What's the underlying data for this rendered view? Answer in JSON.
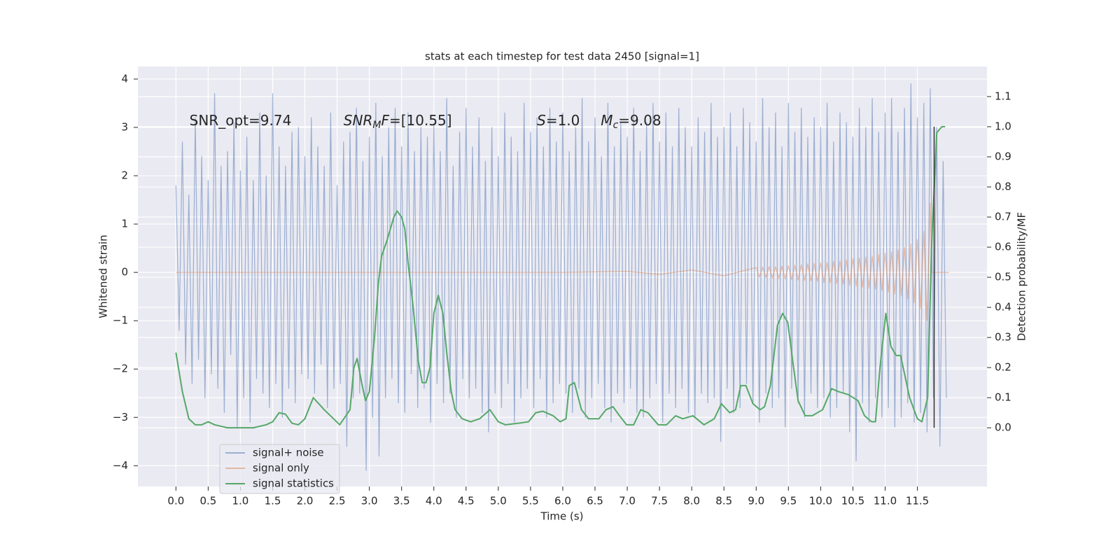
{
  "chart_data": {
    "type": "line",
    "title": "stats at each timestep for test data 2450 [signal=1]",
    "xlabel": "Time (s)",
    "ylabel": "Whitened strain",
    "y2label": "Detection probability/MF",
    "xlim": [
      -0.59,
      12.58
    ],
    "ylim": [
      -4.43,
      4.26
    ],
    "y2lim": [
      -0.195,
      1.2
    ],
    "xticks": [
      {
        "value": 0,
        "label": "0.0"
      },
      0.5,
      {
        "value": 1,
        "label": "1.0"
      },
      1.5,
      {
        "value": 2,
        "label": "2.0"
      },
      2.5,
      {
        "value": 3,
        "label": "3.0"
      },
      3.5,
      {
        "value": 4,
        "label": "4.0"
      },
      4.5,
      {
        "value": 5,
        "label": "5.0"
      },
      5.5,
      {
        "value": 6,
        "label": "6.0"
      },
      6.5,
      {
        "value": 7,
        "label": "7.0"
      },
      7.5,
      {
        "value": 8,
        "label": "8.0"
      },
      8.5,
      {
        "value": 9,
        "label": "9.0"
      },
      9.5,
      {
        "value": 10,
        "label": "10.0"
      },
      10.5,
      {
        "value": 11,
        "label": "11.0"
      },
      11.5
    ],
    "yticks": [
      {
        "value": -4,
        "label": "−4"
      },
      {
        "value": -3,
        "label": "−3"
      },
      {
        "value": -2,
        "label": "−2"
      },
      {
        "value": -1,
        "label": "−1"
      },
      0,
      1,
      2,
      3,
      4
    ],
    "y2ticks": [
      {
        "value": 0,
        "label": "0.0"
      },
      0.1,
      0.2,
      0.3,
      0.4,
      0.5,
      0.6,
      0.7,
      0.8,
      0.9,
      {
        "value": 1,
        "label": "1.0"
      },
      1.1
    ],
    "grid": true,
    "legend": "lower left",
    "series": [
      {
        "name": "signal+ noise",
        "color": "#4c72b0",
        "opacity": 0.5,
        "x": [
          0,
          0.05,
          0.1,
          0.15,
          0.2,
          0.25,
          0.3,
          0.35,
          0.4,
          0.45,
          0.5,
          0.55,
          0.6,
          0.65,
          0.7,
          0.75,
          0.8,
          0.85,
          0.9,
          0.95,
          1,
          1.05,
          1.1,
          1.15,
          1.2,
          1.25,
          1.3,
          1.35,
          1.4,
          1.45,
          1.5,
          1.55,
          1.6,
          1.65,
          1.7,
          1.75,
          1.8,
          1.85,
          1.9,
          1.95,
          2,
          2.05,
          2.1,
          2.15,
          2.2,
          2.25,
          2.3,
          2.35,
          2.4,
          2.45,
          2.5,
          2.55,
          2.6,
          2.65,
          2.7,
          2.75,
          2.8,
          2.85,
          2.9,
          2.95,
          3,
          3.05,
          3.1,
          3.15,
          3.2,
          3.25,
          3.3,
          3.35,
          3.4,
          3.45,
          3.5,
          3.55,
          3.6,
          3.65,
          3.7,
          3.75,
          3.8,
          3.85,
          3.9,
          3.95,
          4,
          4.05,
          4.1,
          4.15,
          4.2,
          4.25,
          4.3,
          4.35,
          4.4,
          4.45,
          4.5,
          4.55,
          4.6,
          4.65,
          4.7,
          4.75,
          4.8,
          4.85,
          4.9,
          4.95,
          5,
          5.05,
          5.1,
          5.15,
          5.2,
          5.25,
          5.3,
          5.35,
          5.4,
          5.45,
          5.5,
          5.55,
          5.6,
          5.65,
          5.7,
          5.75,
          5.8,
          5.85,
          5.9,
          5.95,
          6,
          6.05,
          6.1,
          6.15,
          6.2,
          6.25,
          6.3,
          6.35,
          6.4,
          6.45,
          6.5,
          6.55,
          6.6,
          6.65,
          6.7,
          6.75,
          6.8,
          6.85,
          6.9,
          6.95,
          7,
          7.05,
          7.1,
          7.15,
          7.2,
          7.25,
          7.3,
          7.35,
          7.4,
          7.45,
          7.5,
          7.55,
          7.6,
          7.65,
          7.7,
          7.75,
          7.8,
          7.85,
          7.9,
          7.95,
          8,
          8.05,
          8.1,
          8.15,
          8.2,
          8.25,
          8.3,
          8.35,
          8.4,
          8.45,
          8.5,
          8.55,
          8.6,
          8.65,
          8.7,
          8.75,
          8.8,
          8.85,
          8.9,
          8.95,
          9,
          9.05,
          9.1,
          9.15,
          9.2,
          9.25,
          9.3,
          9.35,
          9.4,
          9.45,
          9.5,
          9.55,
          9.6,
          9.65,
          9.7,
          9.75,
          9.8,
          9.85,
          9.9,
          9.95,
          10,
          10.05,
          10.1,
          10.15,
          10.2,
          10.25,
          10.3,
          10.35,
          10.4,
          10.45,
          10.5,
          10.55,
          10.6,
          10.65,
          10.7,
          10.75,
          10.8,
          10.85,
          10.9,
          10.95,
          11,
          11.05,
          11.1,
          11.15,
          11.2,
          11.25,
          11.3,
          11.35,
          11.4,
          11.45,
          11.5,
          11.55,
          11.6,
          11.65,
          11.7,
          11.75,
          11.8,
          11.85,
          11.9,
          11.95
        ],
        "values": [
          1.8,
          -1.2,
          2.7,
          -1.9,
          1.6,
          -2.3,
          3.2,
          -1.8,
          2.4,
          -2.6,
          1.9,
          -2.1,
          3.7,
          -2.4,
          2.2,
          -2.9,
          2.5,
          -1.7,
          3.1,
          -3.2,
          2.1,
          -2.6,
          2.8,
          -3.1,
          1.9,
          -2.2,
          3.3,
          -2.5,
          2.0,
          -2.8,
          3.7,
          -2.3,
          2.6,
          -3.0,
          2.2,
          -2.4,
          2.9,
          -2.7,
          3.0,
          -2.1,
          2.4,
          -2.2,
          3.2,
          -2.5,
          2.6,
          -1.9,
          2.2,
          -2.8,
          3.3,
          -2.4,
          1.8,
          -2.3,
          2.7,
          -3.6,
          2.9,
          -2.6,
          3.4,
          -2.5,
          2.3,
          -4.1,
          2.8,
          -3.0,
          3.5,
          -3.8,
          2.4,
          -2.6,
          3.0,
          -2.2,
          3.4,
          -2.7,
          2.6,
          -2.9,
          3.3,
          -2.1,
          2.5,
          -2.8,
          3.0,
          -2.4,
          2.8,
          -3.1,
          3.1,
          -2.3,
          2.5,
          -2.7,
          3.6,
          -2.5,
          2.2,
          -3.0,
          2.9,
          -2.2,
          3.4,
          -2.6,
          2.6,
          -2.4,
          3.2,
          -2.9,
          2.3,
          -3.3,
          3.0,
          -2.5,
          2.4,
          -2.8,
          3.3,
          -2.3,
          2.8,
          -3.1,
          2.5,
          -2.6,
          3.5,
          -2.4,
          2.9,
          -2.8,
          3.2,
          -2.2,
          2.6,
          -3.0,
          3.4,
          -2.7,
          2.7,
          -2.3,
          3.3,
          -2.5,
          2.5,
          -2.9,
          3.0,
          -2.4,
          3.6,
          -3.0,
          2.7,
          -2.6,
          3.2,
          -2.3,
          2.4,
          -2.8,
          3.5,
          -3.1,
          2.6,
          -2.5,
          3.1,
          -2.7,
          2.8,
          -2.4,
          3.4,
          -2.9,
          2.5,
          -3.0,
          3.1,
          -2.6,
          3.5,
          -2.3,
          2.7,
          -3.1,
          3.3,
          -2.5,
          2.6,
          -2.8,
          3.4,
          -2.4,
          3.0,
          -2.9,
          2.6,
          -3.0,
          3.2,
          -2.5,
          2.9,
          -2.7,
          3.5,
          -2.6,
          2.8,
          -3.5,
          3.0,
          -2.4,
          3.3,
          -2.9,
          2.6,
          -2.8,
          3.4,
          -2.3,
          3.1,
          -2.7,
          2.7,
          -3.1,
          3.6,
          -2.5,
          3.0,
          -2.8,
          3.3,
          -2.6,
          2.6,
          -3.2,
          3.5,
          -2.4,
          2.9,
          -2.7,
          3.4,
          -3.0,
          2.8,
          -2.5,
          3.2,
          -2.8,
          3.0,
          -2.6,
          3.5,
          -3.0,
          2.7,
          -2.8,
          3.3,
          -2.5,
          3.1,
          -3.3,
          2.8,
          -3.9,
          3.4,
          -2.7,
          3.0,
          -3.1,
          3.6,
          -2.6,
          2.9,
          -3.0,
          3.3,
          -2.8,
          3.6,
          -3.2,
          2.9,
          -3.0,
          3.4,
          -2.7,
          3.9,
          -3.1,
          3.2,
          -2.9,
          3.5,
          -3.3,
          3.8,
          -2.6,
          3.0,
          -3.6,
          2.3,
          -2.6
        ]
      },
      {
        "name": "signal only",
        "color": "#dd8452",
        "opacity": 0.5,
        "x": [
          0,
          1,
          2,
          3,
          4,
          5,
          6,
          7,
          7.5,
          8,
          8.5,
          9,
          9.05,
          9.1,
          9.15,
          9.2,
          9.25,
          9.3,
          9.35,
          9.4,
          9.45,
          9.5,
          9.55,
          9.6,
          9.65,
          9.7,
          9.75,
          9.8,
          9.85,
          9.9,
          9.95,
          10,
          10.05,
          10.1,
          10.15,
          10.2,
          10.25,
          10.3,
          10.35,
          10.4,
          10.45,
          10.5,
          10.55,
          10.6,
          10.65,
          10.7,
          10.75,
          10.8,
          10.85,
          10.9,
          10.95,
          11,
          11.05,
          11.1,
          11.15,
          11.2,
          11.25,
          11.3,
          11.35,
          11.4,
          11.45,
          11.5,
          11.55,
          11.6,
          11.65,
          11.7,
          11.72,
          11.99
        ],
        "values": [
          0,
          0,
          0,
          0,
          0,
          0,
          0,
          0.02,
          -0.04,
          0.05,
          -0.07,
          0.1,
          -0.1,
          0.11,
          -0.11,
          0.12,
          -0.12,
          0.12,
          -0.13,
          0.13,
          -0.14,
          0.14,
          -0.15,
          0.15,
          -0.16,
          0.16,
          -0.17,
          0.18,
          -0.18,
          0.19,
          -0.19,
          0.2,
          -0.21,
          0.21,
          -0.22,
          0.23,
          -0.23,
          0.24,
          -0.25,
          0.26,
          -0.27,
          0.28,
          -0.29,
          0.3,
          -0.31,
          0.32,
          -0.33,
          0.34,
          -0.35,
          0.37,
          -0.38,
          0.4,
          -0.41,
          0.43,
          -0.45,
          0.47,
          -0.49,
          0.52,
          -0.55,
          0.59,
          -0.63,
          0.68,
          -0.75,
          0.85,
          -1.0,
          1.43,
          0,
          0
        ]
      },
      {
        "name": "signal statistics",
        "color": "#55a868",
        "opacity": 1,
        "axis": "y2",
        "x": [
          0,
          0.1,
          0.2,
          0.3,
          0.4,
          0.5,
          0.6,
          0.8,
          1.0,
          1.2,
          1.4,
          1.5,
          1.6,
          1.7,
          1.8,
          1.9,
          2.0,
          2.13,
          2.3,
          2.54,
          2.7,
          2.76,
          2.81,
          2.88,
          2.94,
          3.0,
          3.08,
          3.14,
          3.19,
          3.27,
          3.38,
          3.43,
          3.5,
          3.55,
          3.6,
          3.68,
          3.76,
          3.82,
          3.88,
          3.94,
          4.0,
          4.07,
          4.14,
          4.2,
          4.27,
          4.33,
          4.44,
          4.57,
          4.71,
          4.87,
          5.0,
          5.11,
          5.31,
          5.47,
          5.58,
          5.69,
          5.85,
          5.96,
          6.05,
          6.1,
          6.18,
          6.29,
          6.4,
          6.56,
          6.67,
          6.78,
          6.88,
          6.99,
          7.1,
          7.21,
          7.32,
          7.48,
          7.61,
          7.75,
          7.86,
          8.02,
          8.19,
          8.35,
          8.46,
          8.59,
          8.68,
          8.76,
          8.84,
          8.95,
          9.06,
          9.13,
          9.22,
          9.33,
          9.41,
          9.49,
          9.58,
          9.65,
          9.76,
          9.87,
          10.03,
          10.17,
          10.28,
          10.43,
          10.58,
          10.68,
          10.79,
          10.85,
          10.92,
          11.01,
          11.09,
          11.17,
          11.24,
          11.38,
          11.5,
          11.57,
          11.66,
          11.72,
          11.8,
          11.88,
          11.93
        ],
        "values": [
          0.25,
          0.12,
          0.03,
          0.01,
          0.01,
          0.02,
          0.01,
          0.0,
          0.0,
          0.0,
          0.01,
          0.02,
          0.05,
          0.045,
          0.015,
          0.01,
          0.03,
          0.1,
          0.06,
          0.01,
          0.06,
          0.2,
          0.23,
          0.15,
          0.09,
          0.12,
          0.3,
          0.48,
          0.57,
          0.62,
          0.7,
          0.72,
          0.7,
          0.66,
          0.55,
          0.4,
          0.22,
          0.15,
          0.15,
          0.2,
          0.38,
          0.44,
          0.38,
          0.25,
          0.12,
          0.06,
          0.03,
          0.02,
          0.03,
          0.06,
          0.02,
          0.01,
          0.015,
          0.02,
          0.05,
          0.055,
          0.04,
          0.02,
          0.03,
          0.14,
          0.15,
          0.06,
          0.03,
          0.03,
          0.06,
          0.07,
          0.04,
          0.01,
          0.01,
          0.06,
          0.05,
          0.01,
          0.01,
          0.04,
          0.03,
          0.04,
          0.01,
          0.03,
          0.08,
          0.05,
          0.06,
          0.14,
          0.14,
          0.08,
          0.06,
          0.07,
          0.14,
          0.34,
          0.38,
          0.35,
          0.2,
          0.09,
          0.04,
          0.04,
          0.06,
          0.13,
          0.12,
          0.11,
          0.09,
          0.04,
          0.02,
          0.02,
          0.2,
          0.38,
          0.27,
          0.24,
          0.24,
          0.1,
          0.03,
          0.02,
          0.1,
          0.6,
          0.98,
          1.0,
          1.0
        ]
      }
    ],
    "vline": {
      "x": 11.76,
      "y2": [
        0,
        1
      ],
      "color": "#333333"
    },
    "annotations": [
      {
        "x": 0.21,
        "y": 3.13,
        "parts": [
          {
            "text": "SNR_opt=9.74"
          }
        ]
      },
      {
        "x": 2.6,
        "y": 3.13,
        "parts": [
          {
            "text": "SNR",
            "italic": true
          },
          {
            "text": "M",
            "italic": true,
            "sub": true
          },
          {
            "text": "F",
            "italic": true
          },
          {
            "text": "=[10.55]"
          }
        ]
      },
      {
        "x": 5.6,
        "y": 3.13,
        "parts": [
          {
            "text": "S",
            "italic": true
          },
          {
            "text": "=1.0"
          }
        ]
      },
      {
        "x": 6.59,
        "y": 3.13,
        "parts": [
          {
            "text": "M",
            "italic": true
          },
          {
            "text": "c",
            "italic": true,
            "sub": true
          },
          {
            "text": "=9.08"
          }
        ]
      }
    ]
  }
}
